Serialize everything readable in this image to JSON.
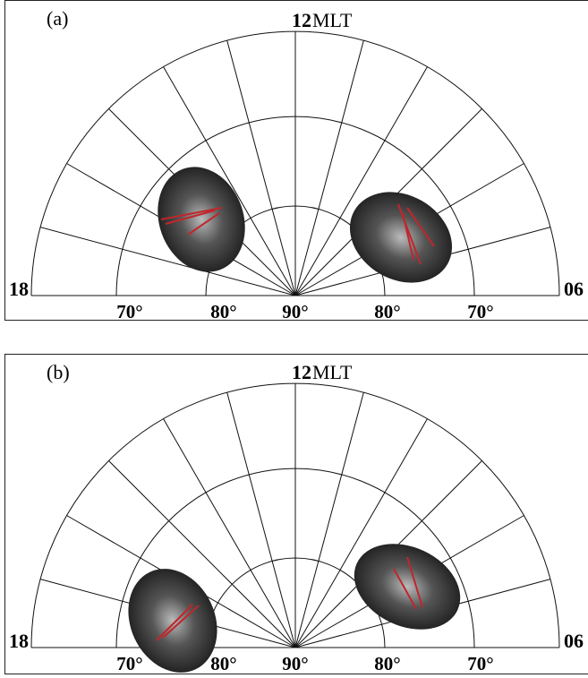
{
  "panels": [
    {
      "label": "(a)",
      "top": "12",
      "mlt": "MLT",
      "left": "18",
      "right": "06",
      "lat_labels": [
        "70°",
        "80°",
        "90°",
        "80°",
        "70°"
      ]
    },
    {
      "label": "(b)",
      "top": "12",
      "mlt": "MLT",
      "left": "18",
      "right": "06",
      "lat_labels": [
        "70°",
        "80°",
        "90°",
        "80°",
        "70°"
      ]
    }
  ]
}
